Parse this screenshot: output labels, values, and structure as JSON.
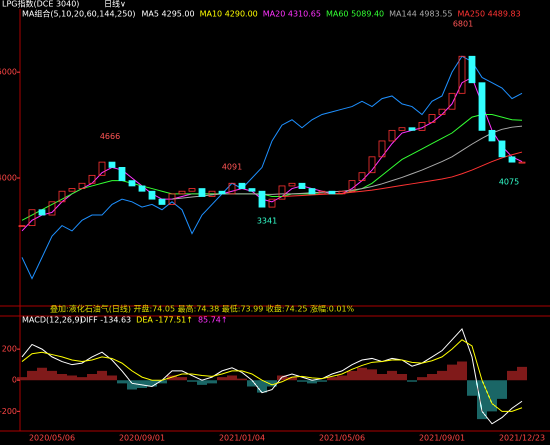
{
  "header": {
    "title": "LPG指数(DCE 3040)",
    "period": "日线∨"
  },
  "chart_data": [
    {
      "type": "candle",
      "legend_title": "MA组合(5,10,20,60,144,250)",
      "legend": [
        {
          "label": "MA5 4295.00",
          "color": "#ffffff"
        },
        {
          "label": "MA10 4290.00",
          "color": "#ffff00"
        },
        {
          "label": "MA20 4310.65",
          "color": "#ff33ff"
        },
        {
          "label": "MA60 5089.40",
          "color": "#33ff33"
        },
        {
          "label": "MA144 4983.55",
          "color": "#aaaaaa"
        },
        {
          "label": "MA250 4489.83",
          "color": "#ff3333"
        }
      ],
      "categories": [
        null,
        null,
        null,
        "2020/05/06",
        null,
        null,
        null,
        null,
        null,
        null,
        null,
        null,
        "2020/09/01",
        null,
        null,
        null,
        null,
        null,
        null,
        null,
        null,
        null,
        "2021/01/04",
        null,
        null,
        null,
        null,
        null,
        null,
        null,
        null,
        null,
        "2021/05/06",
        null,
        null,
        null,
        null,
        null,
        null,
        null,
        null,
        null,
        "2021/09/01",
        null,
        null,
        null,
        null,
        null,
        null,
        null,
        "2021/12/23"
      ],
      "ylim": [
        1600,
        7080
      ],
      "yticks": [
        4000,
        6000
      ],
      "up_color": "#ff3333",
      "down_color": "#33ffff",
      "values": [
        3100,
        3400,
        3300,
        3550,
        3750,
        3800,
        3900,
        4050,
        4300,
        4200,
        3950,
        3850,
        3750,
        3600,
        3500,
        3700,
        3750,
        3800,
        3650,
        3750,
        3700,
        3900,
        3800,
        3750,
        3450,
        3600,
        3850,
        3900,
        3800,
        3700,
        3750,
        3700,
        3750,
        3950,
        4100,
        4400,
        4700,
        4900,
        4950,
        4900,
        5050,
        5200,
        5300,
        5600,
        6300,
        5800,
        4900,
        4700,
        4400,
        4300,
        4300
      ],
      "series": [
        {
          "name": "叠加:液化石油气(日线)",
          "color": "#1e90ff",
          "values": [
            2500,
            2100,
            2500,
            2900,
            3100,
            3000,
            3200,
            3300,
            3300,
            3500,
            3600,
            3550,
            3450,
            3500,
            3400,
            3550,
            3400,
            2950,
            3300,
            3500,
            3700,
            3900,
            3800,
            4000,
            4200,
            4700,
            5000,
            5100,
            4950,
            5100,
            5200,
            5250,
            5300,
            5350,
            5450,
            5350,
            5500,
            5550,
            5400,
            5350,
            5200,
            5450,
            5550,
            6000,
            6300,
            6200,
            5900,
            5800,
            5700,
            5500,
            5600
          ]
        },
        {
          "color": "#ff33ff",
          "values": [
            3000,
            3200,
            3300,
            3350,
            3550,
            3700,
            3800,
            3900,
            4100,
            4200,
            4150,
            4000,
            3850,
            3700,
            3600,
            3600,
            3650,
            3700,
            3700,
            3700,
            3700,
            3750,
            3800,
            3750,
            3600,
            3550,
            3650,
            3800,
            3850,
            3800,
            3750,
            3700,
            3700,
            3800,
            3950,
            4150,
            4400,
            4650,
            4850,
            4900,
            4950,
            5050,
            5200,
            5400,
            5800,
            5900,
            5400,
            4900,
            4600,
            4400,
            4310
          ]
        },
        {
          "color": "#33ff33",
          "values": [
            3200,
            3300,
            3400,
            3500,
            3600,
            3700,
            3800,
            3850,
            3900,
            3950,
            3950,
            3900,
            3850,
            3800,
            3750,
            3700,
            3700,
            3700,
            3700,
            3700,
            3700,
            3700,
            3700,
            3700,
            3700,
            3650,
            3650,
            3700,
            3700,
            3700,
            3700,
            3700,
            3700,
            3750,
            3800,
            3900,
            4050,
            4200,
            4350,
            4450,
            4550,
            4650,
            4750,
            4850,
            5000,
            5150,
            5200,
            5200,
            5150,
            5100,
            5090
          ]
        },
        {
          "color": "#aaaaaa",
          "values": [
            null,
            null,
            null,
            null,
            null,
            null,
            null,
            null,
            null,
            null,
            null,
            null,
            null,
            null,
            null,
            3600,
            3620,
            3640,
            3660,
            3680,
            3700,
            3700,
            3700,
            3700,
            3690,
            3690,
            3700,
            3700,
            3710,
            3720,
            3730,
            3740,
            3750,
            3770,
            3800,
            3840,
            3890,
            3950,
            4010,
            4080,
            4150,
            4230,
            4310,
            4400,
            4520,
            4640,
            4750,
            4850,
            4920,
            4960,
            4980
          ]
        },
        {
          "color": "#ff3333",
          "values": [
            null,
            null,
            null,
            null,
            null,
            null,
            null,
            null,
            null,
            null,
            null,
            null,
            null,
            null,
            null,
            null,
            null,
            null,
            null,
            null,
            null,
            null,
            null,
            null,
            null,
            null,
            3650,
            3660,
            3670,
            3680,
            3690,
            3700,
            3710,
            3730,
            3750,
            3770,
            3800,
            3830,
            3860,
            3890,
            3920,
            3950,
            3980,
            4020,
            4080,
            4150,
            4230,
            4310,
            4380,
            4440,
            4490
          ]
        }
      ],
      "annotations": [
        4666,
        4091,
        3341,
        6801,
        4075
      ],
      "info": "叠加:液化石油气(日线)   开盘:74.05  最高:74.38  最低:73.99  收盘:74.25  涨幅:0.01%"
    },
    {
      "type": "macd",
      "title": "MACD(12,26,9)",
      "legend": [
        {
          "label": "DIFF -134.63",
          "color": "#ffffff"
        },
        {
          "label": "DEA -177.51↑",
          "color": "#ffff00"
        },
        {
          "label": "85.74↑",
          "color": "#ff33ff"
        }
      ],
      "ylim": [
        -320,
        400
      ],
      "yticks": [
        -200,
        0,
        200
      ],
      "up_color": "#ff3333",
      "down_color": "#33cccc",
      "values": [
        20,
        60,
        80,
        60,
        40,
        30,
        20,
        40,
        60,
        30,
        -20,
        -60,
        -50,
        -40,
        -20,
        30,
        20,
        -10,
        -30,
        -20,
        20,
        30,
        10,
        -40,
        -80,
        -40,
        30,
        20,
        -10,
        -20,
        -10,
        20,
        30,
        60,
        80,
        70,
        40,
        60,
        40,
        -10,
        20,
        40,
        60,
        100,
        120,
        -100,
        -250,
        -200,
        -120,
        60,
        86
      ],
      "series": [
        {
          "name": "DIFF",
          "color": "#ffffff",
          "values": [
            150,
            230,
            200,
            150,
            120,
            100,
            110,
            150,
            180,
            130,
            60,
            -20,
            -30,
            -40,
            0,
            60,
            60,
            30,
            0,
            20,
            60,
            80,
            50,
            0,
            -80,
            -60,
            20,
            40,
            20,
            0,
            10,
            40,
            60,
            100,
            130,
            140,
            120,
            140,
            130,
            90,
            110,
            150,
            190,
            260,
            330,
            150,
            -200,
            -280,
            -240,
            -180,
            -135
          ]
        },
        {
          "name": "DEA",
          "color": "#ffff00",
          "values": [
            120,
            170,
            180,
            165,
            150,
            130,
            120,
            130,
            150,
            140,
            110,
            60,
            20,
            0,
            0,
            20,
            40,
            40,
            30,
            25,
            40,
            60,
            60,
            40,
            0,
            -30,
            -10,
            20,
            25,
            15,
            10,
            25,
            40,
            70,
            95,
            115,
            120,
            130,
            130,
            115,
            110,
            125,
            150,
            200,
            260,
            220,
            0,
            -150,
            -200,
            -200,
            -177
          ]
        }
      ]
    }
  ]
}
